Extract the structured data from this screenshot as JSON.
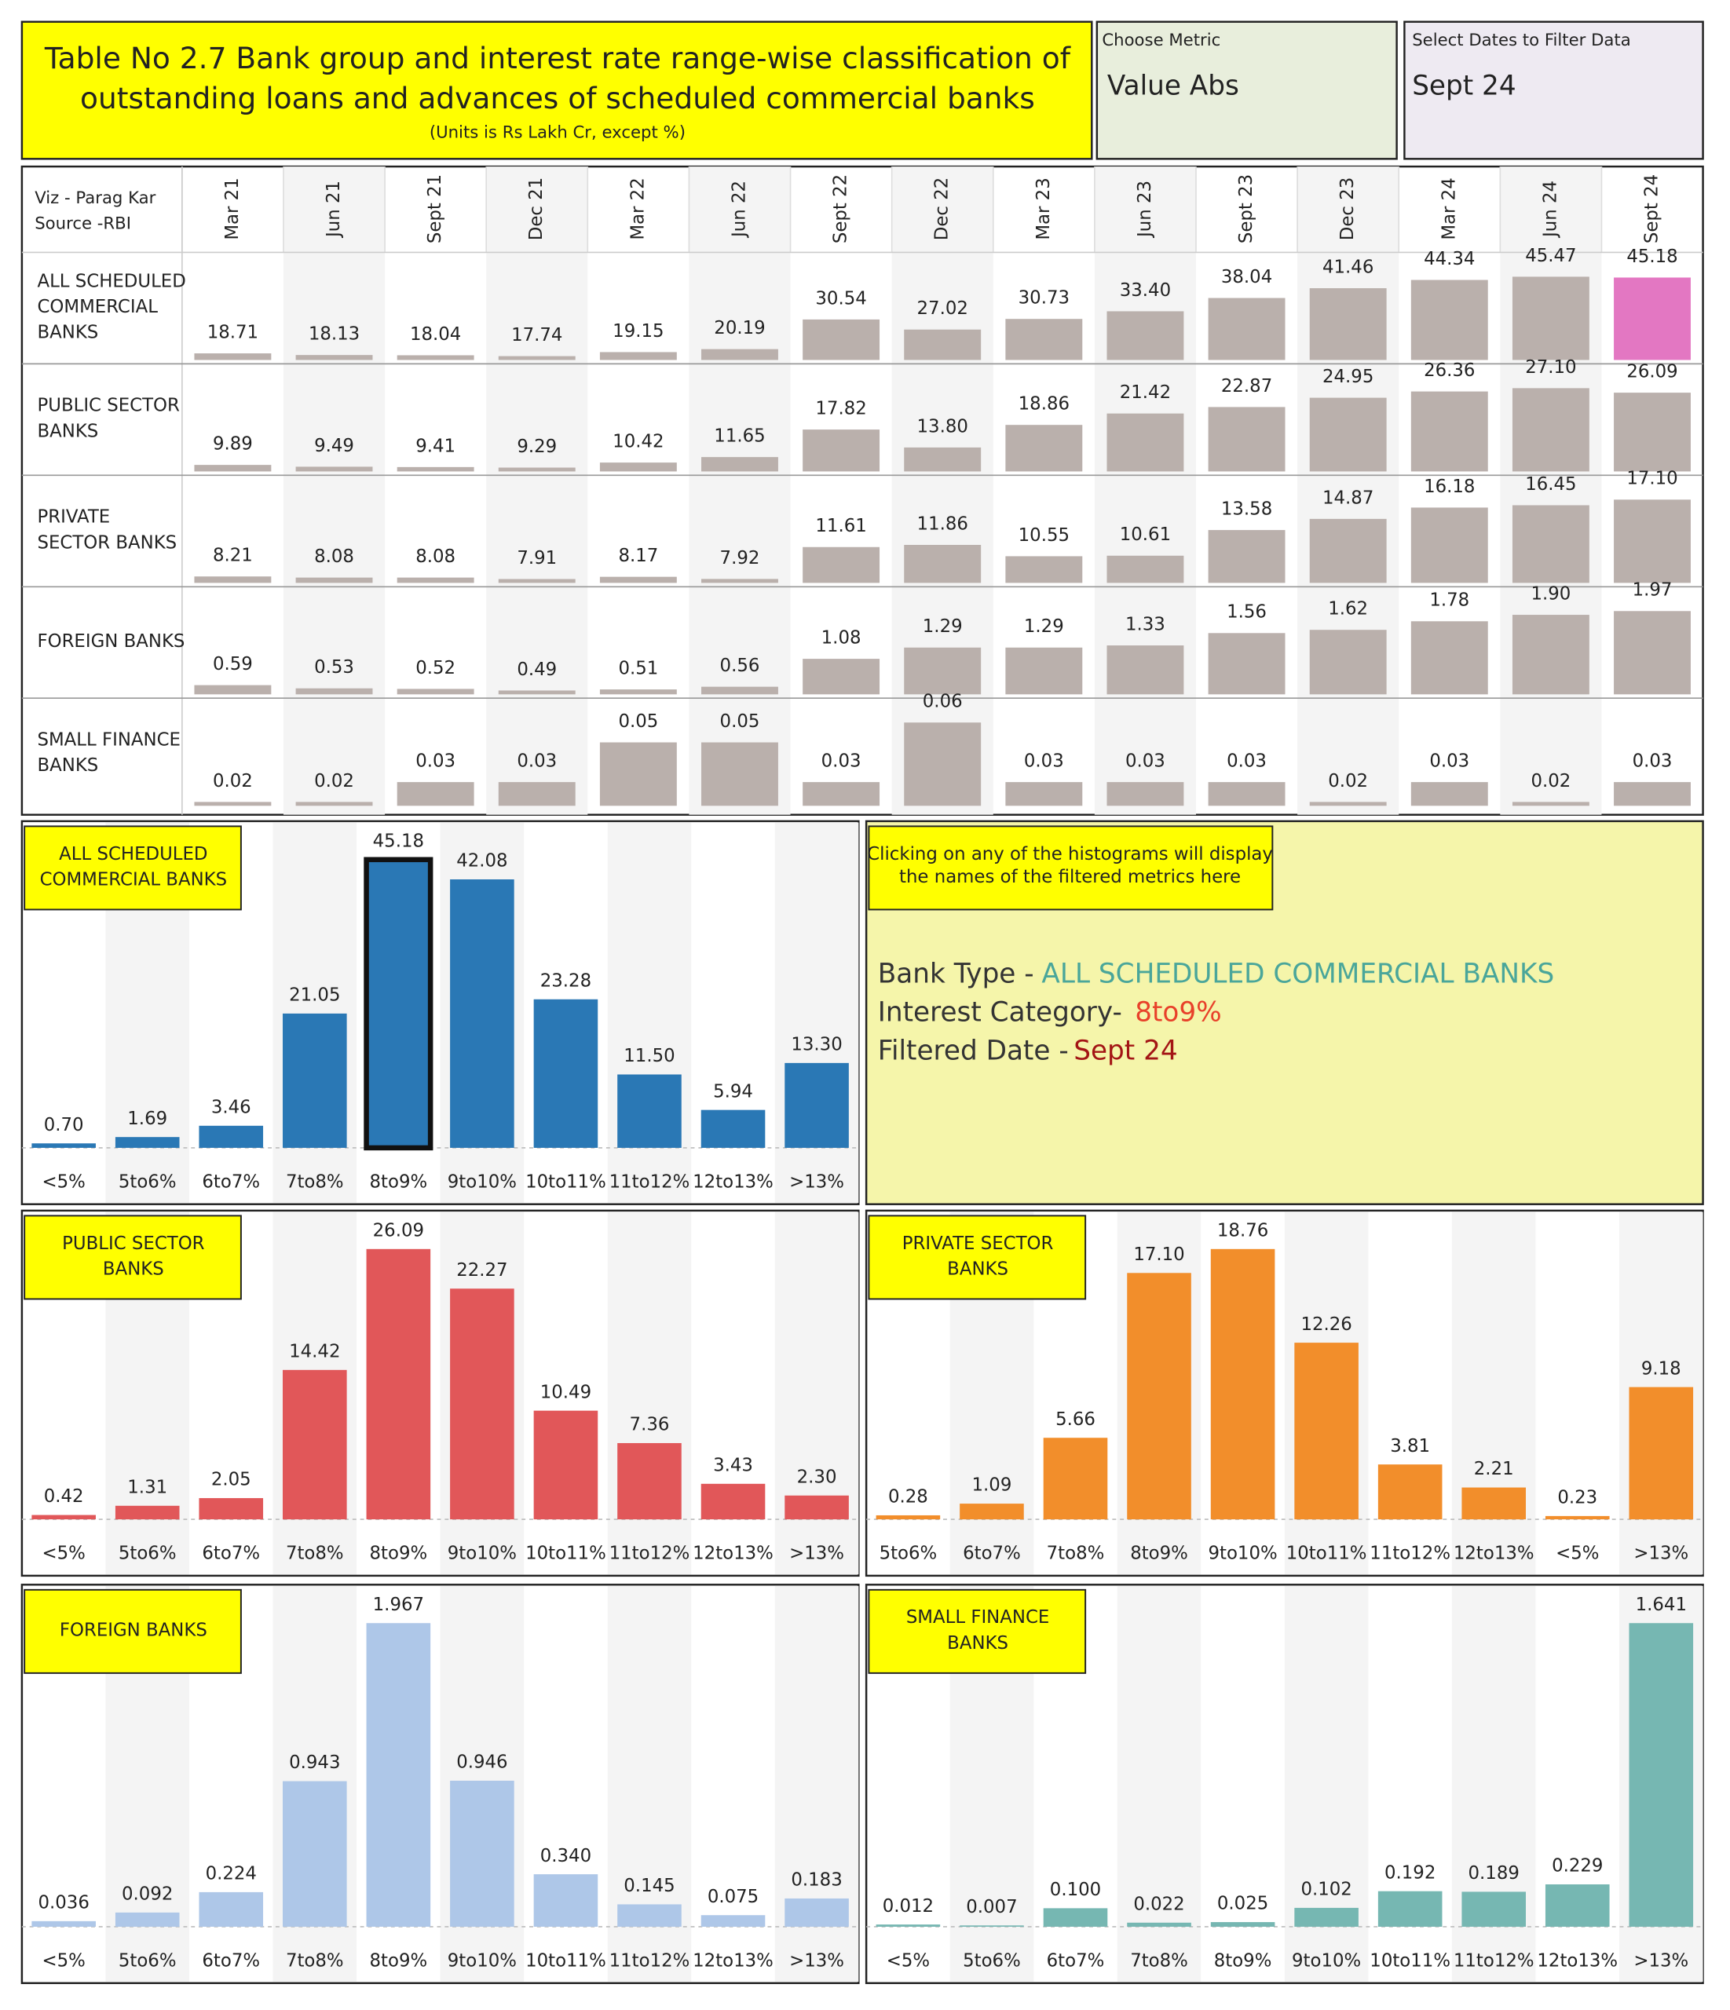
{
  "header": {
    "title_lines": [
      "Table No 2.7 Bank group and interest rate range-wise classification of",
      "outstanding loans and advances of scheduled commercial banks"
    ],
    "units": "(Units is Rs Lakh Cr, except %)"
  },
  "metric_filter": {
    "label": "Choose Metric",
    "value": "Value Abs"
  },
  "date_filter": {
    "label": "Select Dates to Filter Data",
    "value": "Sept 24"
  },
  "table": {
    "credit_lines": [
      "Viz - Parag Kar",
      "Source -RBI"
    ],
    "dates": [
      "Mar 21",
      "Jun 21",
      "Sept 21",
      "Dec 21",
      "Mar 22",
      "Jun 22",
      "Sept 22",
      "Dec 22",
      "Mar 23",
      "Jun 23",
      "Sept 23",
      "Dec 23",
      "Mar 24",
      "Jun 24",
      "Sept 24"
    ],
    "bar_color": "#bab0ac",
    "highlight_color": "#e377c2",
    "rows": [
      {
        "name_lines": [
          "ALL SCHEDULED",
          "COMMERCIAL",
          "BANKS"
        ],
        "values": [
          18.71,
          18.13,
          18.04,
          17.74,
          19.15,
          20.19,
          30.54,
          27.02,
          30.73,
          33.4,
          38.04,
          41.46,
          44.34,
          45.47,
          45.18
        ],
        "value_labels": [
          "18.71",
          "18.13",
          "18.04",
          "17.74",
          "19.15",
          "20.19",
          "30.54",
          "27.02",
          "30.73",
          "33.40",
          "38.04",
          "41.46",
          "44.34",
          "45.47",
          "45.18"
        ]
      },
      {
        "name_lines": [
          "PUBLIC SECTOR",
          "BANKS"
        ],
        "values": [
          9.89,
          9.49,
          9.41,
          9.29,
          10.42,
          11.65,
          17.82,
          13.8,
          18.86,
          21.42,
          22.87,
          24.95,
          26.36,
          27.1,
          26.09
        ],
        "value_labels": [
          "9.89",
          "9.49",
          "9.41",
          "9.29",
          "10.42",
          "11.65",
          "17.82",
          "13.80",
          "18.86",
          "21.42",
          "22.87",
          "24.95",
          "26.36",
          "27.10",
          "26.09"
        ]
      },
      {
        "name_lines": [
          "PRIVATE",
          "SECTOR BANKS"
        ],
        "values": [
          8.21,
          8.08,
          8.08,
          7.91,
          8.17,
          7.92,
          11.61,
          11.86,
          10.55,
          10.61,
          13.58,
          14.87,
          16.18,
          16.45,
          17.1
        ],
        "value_labels": [
          "8.21",
          "8.08",
          "8.08",
          "7.91",
          "8.17",
          "7.92",
          "11.61",
          "11.86",
          "10.55",
          "10.61",
          "13.58",
          "14.87",
          "16.18",
          "16.45",
          "17.10"
        ]
      },
      {
        "name_lines": [
          "FOREIGN BANKS"
        ],
        "values": [
          0.59,
          0.53,
          0.52,
          0.49,
          0.51,
          0.56,
          1.08,
          1.29,
          1.29,
          1.33,
          1.56,
          1.62,
          1.78,
          1.9,
          1.97
        ],
        "value_labels": [
          "0.59",
          "0.53",
          "0.52",
          "0.49",
          "0.51",
          "0.56",
          "1.08",
          "1.29",
          "1.29",
          "1.33",
          "1.56",
          "1.62",
          "1.78",
          "1.90",
          "1.97"
        ]
      },
      {
        "name_lines": [
          "SMALL FINANCE",
          "BANKS"
        ],
        "values": [
          0.02,
          0.02,
          0.03,
          0.03,
          0.05,
          0.05,
          0.03,
          0.06,
          0.03,
          0.03,
          0.03,
          0.02,
          0.03,
          0.02,
          0.03
        ],
        "value_labels": [
          "0.02",
          "0.02",
          "0.03",
          "0.03",
          "0.05",
          "0.05",
          "0.03",
          "0.06",
          "0.03",
          "0.03",
          "0.03",
          "0.02",
          "0.03",
          "0.02",
          "0.03"
        ]
      }
    ]
  },
  "histograms": [
    {
      "type": "bar",
      "title_lines": [
        "ALL SCHEDULED",
        "COMMERCIAL BANKS"
      ],
      "color": "#2a78b5",
      "categories": [
        "<5%",
        "5to6%",
        "6to7%",
        "7to8%",
        "8to9%",
        "9to10%",
        "10to11%",
        "11to12%",
        "12to13%",
        ">13%"
      ],
      "values": [
        0.7,
        1.69,
        3.46,
        21.05,
        45.18,
        42.08,
        23.28,
        11.5,
        5.94,
        13.3
      ],
      "value_labels": [
        "0.70",
        "1.69",
        "3.46",
        "21.05",
        "45.18",
        "42.08",
        "23.28",
        "11.50",
        "5.94",
        "13.30"
      ]
    },
    {
      "type": "bar",
      "title_lines": [
        "PUBLIC SECTOR",
        "BANKS"
      ],
      "color": "#e15759",
      "categories": [
        "<5%",
        "5to6%",
        "6to7%",
        "7to8%",
        "8to9%",
        "9to10%",
        "10to11%",
        "11to12%",
        "12to13%",
        ">13%"
      ],
      "values": [
        0.42,
        1.31,
        2.05,
        14.42,
        26.09,
        22.27,
        10.49,
        7.36,
        3.43,
        2.3
      ],
      "value_labels": [
        "0.42",
        "1.31",
        "2.05",
        "14.42",
        "26.09",
        "22.27",
        "10.49",
        "7.36",
        "3.43",
        "2.30"
      ]
    },
    {
      "type": "bar",
      "title_lines": [
        "PRIVATE SECTOR",
        "BANKS"
      ],
      "color": "#f28e2b",
      "categories": [
        "5to6%",
        "6to7%",
        "7to8%",
        "8to9%",
        "9to10%",
        "10to11%",
        "11to12%",
        "12to13%",
        "<5%",
        ">13%"
      ],
      "values": [
        0.28,
        1.09,
        5.66,
        17.1,
        18.76,
        12.26,
        3.81,
        2.21,
        0.23,
        9.18
      ],
      "value_labels": [
        "0.28",
        "1.09",
        "5.66",
        "17.10",
        "18.76",
        "12.26",
        "3.81",
        "2.21",
        "0.23",
        "9.18"
      ]
    },
    {
      "type": "bar",
      "title_lines": [
        "FOREIGN BANKS"
      ],
      "color": "#aec7e8",
      "categories": [
        "<5%",
        "5to6%",
        "6to7%",
        "7to8%",
        "8to9%",
        "9to10%",
        "10to11%",
        "11to12%",
        "12to13%",
        ">13%"
      ],
      "values": [
        0.036,
        0.092,
        0.224,
        0.943,
        1.967,
        0.946,
        0.34,
        0.145,
        0.075,
        0.183
      ],
      "value_labels": [
        "0.036",
        "0.092",
        "0.224",
        "0.943",
        "1.967",
        "0.946",
        "0.340",
        "0.145",
        "0.075",
        "0.183"
      ]
    },
    {
      "type": "bar",
      "title_lines": [
        "SMALL FINANCE",
        "BANKS"
      ],
      "color": "#76b7b2",
      "categories": [
        "<5%",
        "5to6%",
        "6to7%",
        "7to8%",
        "8to9%",
        "9to10%",
        "10to11%",
        "11to12%",
        "12to13%",
        ">13%"
      ],
      "values": [
        0.012,
        0.007,
        0.1,
        0.022,
        0.025,
        0.102,
        0.192,
        0.189,
        0.229,
        1.641
      ],
      "value_labels": [
        "0.012",
        "0.007",
        "0.100",
        "0.022",
        "0.025",
        "0.102",
        "0.192",
        "0.189",
        "0.229",
        "1.641"
      ]
    }
  ],
  "info": {
    "note_lines": [
      "Clicking on any of the histograms will display",
      "the names of the filtered metrics here"
    ],
    "bank_type_label": "Bank Type -",
    "bank_type": "ALL SCHEDULED COMMERCIAL BANKS",
    "interest_label": "Interest Category-",
    "interest": "8to9%",
    "date_label": "Filtered Date -",
    "date": "Sept 24"
  }
}
